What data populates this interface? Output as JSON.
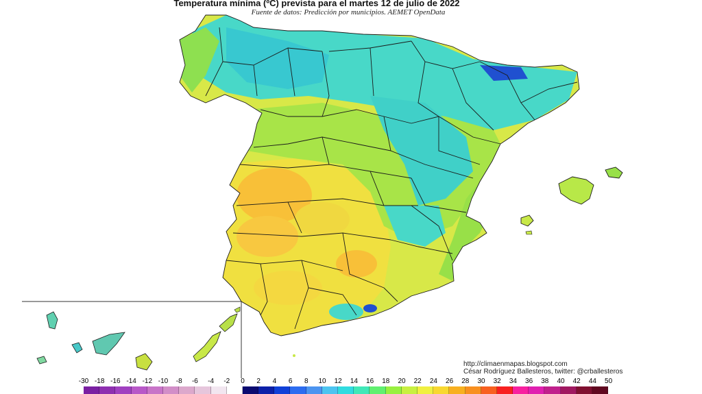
{
  "map": {
    "title": "Temperatura mínima (ºC) prevista para el martes 12 de julio de 2022",
    "subtitle": "Fuente de datos: Predicción por municipios. AEMET OpenData",
    "credits": {
      "line1": "http://climaenmapas.blogspot.com",
      "line2": "César Rodríguez Ballesteros, twitter: @crballesteros"
    },
    "inset": "Canary Islands (inset)"
  },
  "legend": {
    "labels": [
      "-30",
      "-18",
      "-16",
      "-14",
      "-12",
      "-10",
      "-8",
      "-6",
      "-4",
      "-2",
      "0",
      "2",
      "4",
      "6",
      "8",
      "10",
      "12",
      "14",
      "16",
      "18",
      "20",
      "22",
      "24",
      "26",
      "28",
      "30",
      "32",
      "34",
      "36",
      "38",
      "40",
      "42",
      "44",
      "50"
    ],
    "colors": [
      "#7a1fa2",
      "#8e2fb0",
      "#a040c0",
      "#b858c8",
      "#c874c8",
      "#d28ec8",
      "#dca8cc",
      "#e6c6dc",
      "#f2e6f0",
      "#ffffff",
      "#0a0a70",
      "#0c20a8",
      "#1040d8",
      "#2c6cf0",
      "#4c94f0",
      "#4cc4f0",
      "#30dce0",
      "#40e8b8",
      "#60f070",
      "#98f040",
      "#c8f040",
      "#f0f040",
      "#f8d830",
      "#f8b020",
      "#f89020",
      "#f86020",
      "#f82020",
      "#f820a0",
      "#e020b0",
      "#c0208c",
      "#a01860",
      "#801030",
      "#600820"
    ]
  },
  "colors": {
    "warm_interior": "#f8c038",
    "hot_core": "#f8a830",
    "mild": "#c8e84a",
    "green": "#8ee050",
    "cool": "#48d8c8",
    "coolest": "#30b8d8",
    "very_cold_peaks": "#2050d0",
    "sea": "#ffffff",
    "borders": "#1a1a1a"
  }
}
